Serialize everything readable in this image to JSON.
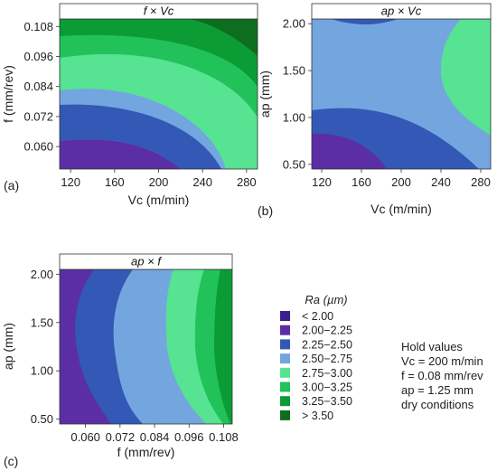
{
  "chart_data": [
    {
      "type": "contour",
      "panel": "(a)",
      "title": "f × Vc",
      "xlabel": "Vc (m/min)",
      "ylabel": "f (mm/rev)",
      "x_ticks": [
        120,
        160,
        200,
        240,
        280
      ],
      "y_ticks": [
        "0.060",
        "0.072",
        "0.084",
        "0.096",
        "0.108"
      ],
      "xlim": [
        110,
        290
      ],
      "ylim": [
        0.051,
        0.111
      ],
      "x_ticks_values": [
        120,
        160,
        200,
        240,
        280
      ],
      "y_ticks_values": [
        0.06,
        0.072,
        0.084,
        0.096,
        0.108
      ]
    },
    {
      "type": "contour",
      "panel": "(b)",
      "title": "ap × Vc",
      "xlabel": "Vc (m/min)",
      "ylabel": "ap (mm)",
      "x_ticks": [
        120,
        160,
        200,
        240,
        280
      ],
      "y_ticks": [
        "0.50",
        "1.00",
        "1.50",
        "2.00"
      ],
      "xlim": [
        110,
        290
      ],
      "ylim": [
        0.45,
        2.05
      ],
      "x_ticks_values": [
        120,
        160,
        200,
        240,
        280
      ],
      "y_ticks_values": [
        0.5,
        1.0,
        1.5,
        2.0
      ]
    },
    {
      "type": "contour",
      "panel": "(c)",
      "title": "ap × f",
      "xlabel": "f (mm/rev)",
      "ylabel": "ap (mm)",
      "x_ticks": [
        "0.060",
        "0.072",
        "0.084",
        "0.096",
        "0.108"
      ],
      "y_ticks": [
        "0.50",
        "1.00",
        "1.50",
        "2.00"
      ],
      "xlim": [
        0.051,
        0.111
      ],
      "ylim": [
        0.45,
        2.05
      ],
      "x_ticks_values": [
        0.06,
        0.072,
        0.084,
        0.096,
        0.108
      ],
      "y_ticks_values": [
        0.5,
        1.0,
        1.5,
        2.0
      ]
    }
  ],
  "legend": {
    "title": "Ra (µm)",
    "entries": [
      {
        "label": "< 2.00",
        "color": "#3a1f8f"
      },
      {
        "label": "2.00−2.25",
        "color": "#5b2ea6"
      },
      {
        "label": "2.25−2.50",
        "color": "#3358b5"
      },
      {
        "label": "2.50−2.75",
        "color": "#73a6de"
      },
      {
        "label": "2.75−3.00",
        "color": "#56e392"
      },
      {
        "label": "3.00−3.25",
        "color": "#22c25a"
      },
      {
        "label": "3.25−3.50",
        "color": "#0c9c36"
      },
      {
        "label": "> 3.50",
        "color": "#0c6e1e"
      }
    ]
  },
  "hold_values": {
    "title": "Hold values",
    "lines": [
      "Vc = 200 m/min",
      "f = 0.08 mm/rev",
      "ap = 1.25 mm",
      "dry conditions"
    ]
  }
}
